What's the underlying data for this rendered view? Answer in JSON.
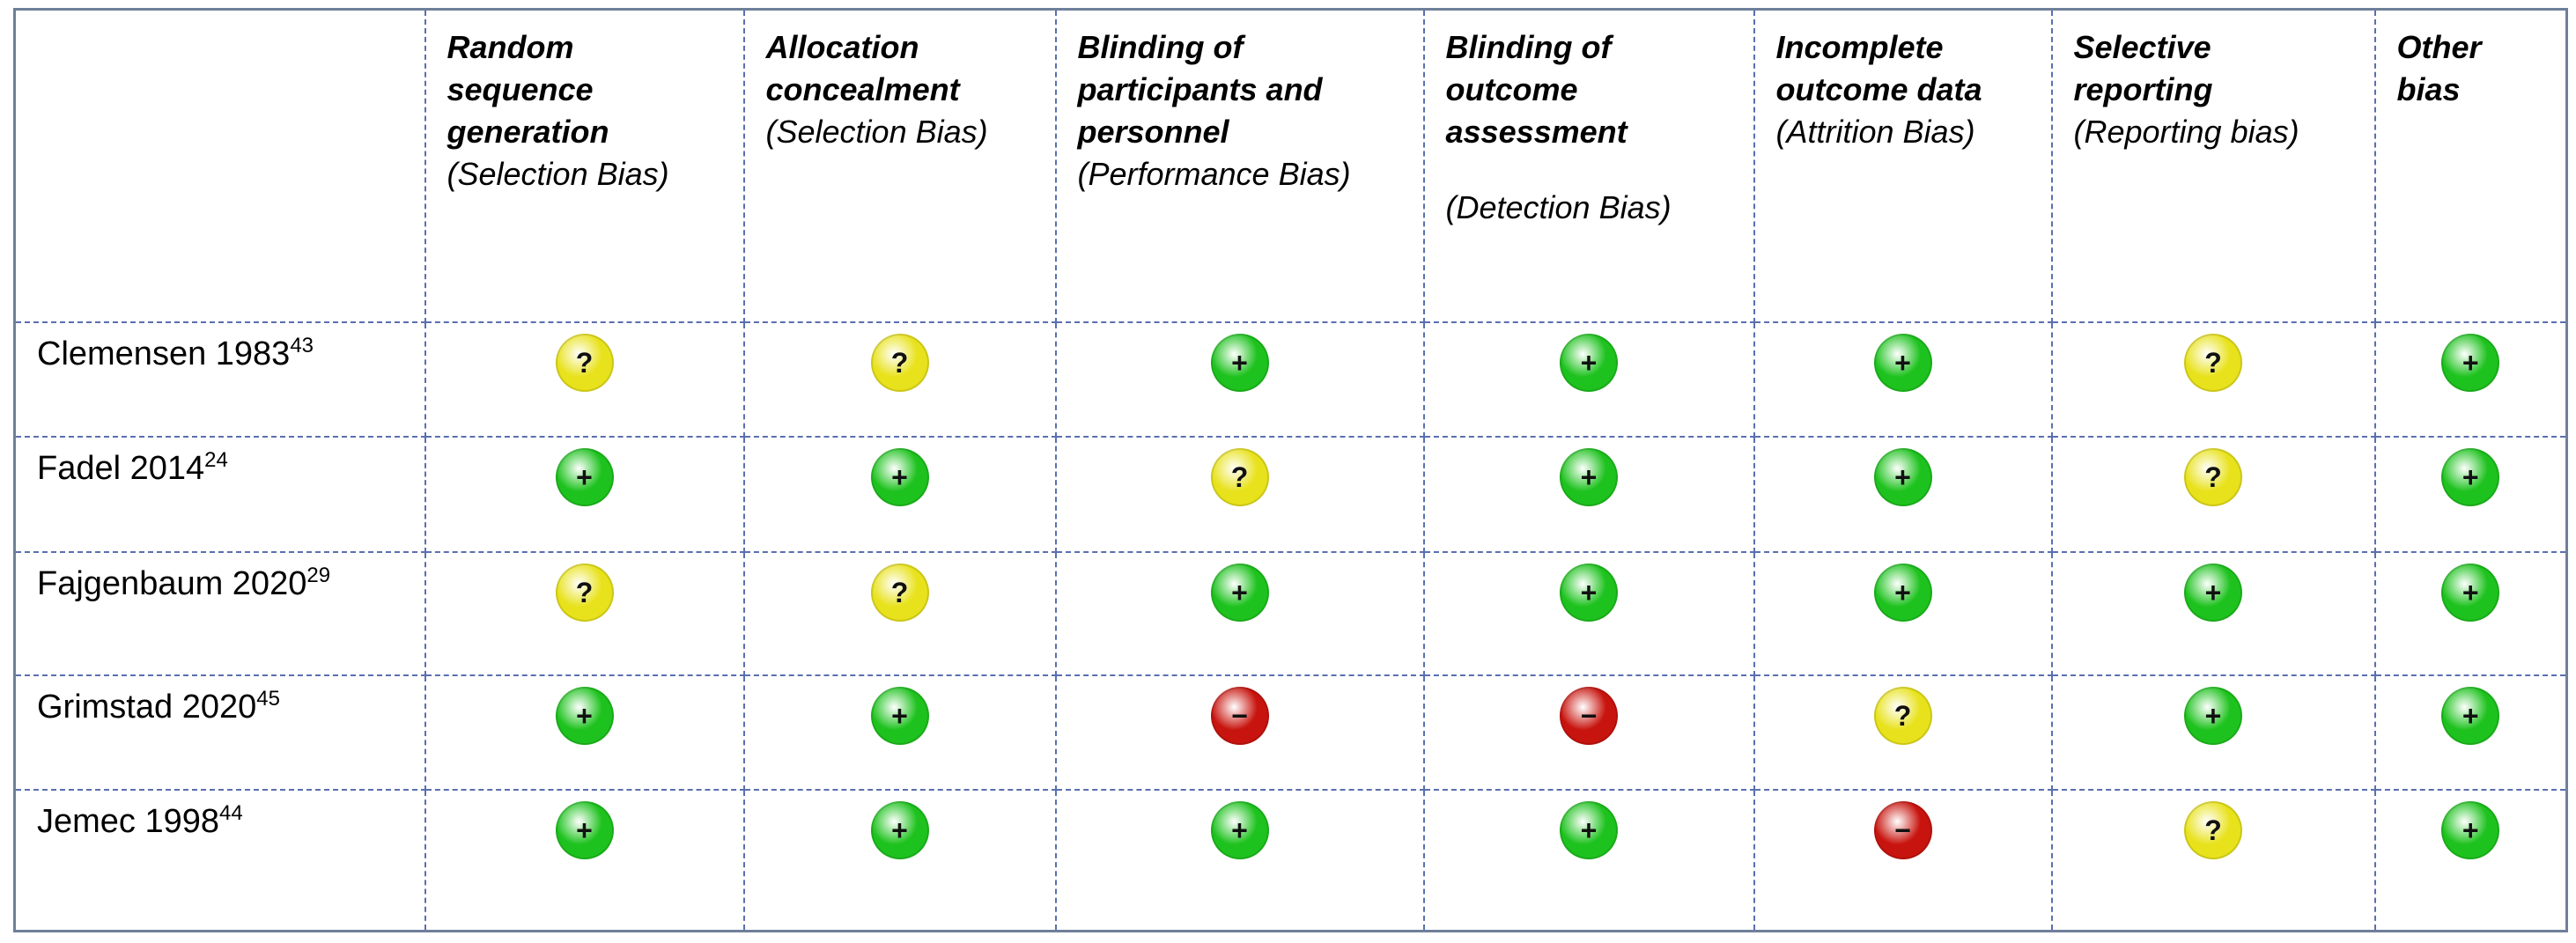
{
  "table": {
    "columns": [
      {
        "title": "Random sequence generation",
        "subtitle": "(Selection Bias)"
      },
      {
        "title": "Allocation concealment",
        "subtitle": "(Selection Bias)"
      },
      {
        "title": "Blinding of participants and personnel",
        "subtitle": "(Performance Bias)"
      },
      {
        "title": "Blinding of outcome assessment",
        "subtitle": "(Detection Bias)"
      },
      {
        "title": "Incomplete outcome data",
        "subtitle": "(Attrition Bias)"
      },
      {
        "title": "Selective reporting",
        "subtitle": "(Reporting bias)"
      },
      {
        "title": "Other bias"
      }
    ],
    "rows": [
      {
        "name": "Clemensen 1983",
        "ref": "43",
        "cells": [
          {
            "symbol": "?",
            "color": "#e8e21c"
          },
          {
            "symbol": "?",
            "color": "#e8e21c"
          },
          {
            "symbol": "+",
            "color": "#1ec21e"
          },
          {
            "symbol": "+",
            "color": "#1ec21e"
          },
          {
            "symbol": "+",
            "color": "#1ec21e"
          },
          {
            "symbol": "?",
            "color": "#e8e21c"
          },
          {
            "symbol": "+",
            "color": "#1ec21e"
          }
        ]
      },
      {
        "name": "Fadel 2014",
        "ref": "24",
        "cells": [
          {
            "symbol": "+",
            "color": "#1ec21e"
          },
          {
            "symbol": "+",
            "color": "#1ec21e"
          },
          {
            "symbol": "?",
            "color": "#e8e21c"
          },
          {
            "symbol": "+",
            "color": "#1ec21e"
          },
          {
            "symbol": "+",
            "color": "#1ec21e"
          },
          {
            "symbol": "?",
            "color": "#e8e21c"
          },
          {
            "symbol": "+",
            "color": "#1ec21e"
          }
        ]
      },
      {
        "name": "Fajgenbaum 2020",
        "ref": "29",
        "cells": [
          {
            "symbol": "?",
            "color": "#e8e21c"
          },
          {
            "symbol": "?",
            "color": "#e8e21c"
          },
          {
            "symbol": "+",
            "color": "#1ec21e"
          },
          {
            "symbol": "+",
            "color": "#1ec21e"
          },
          {
            "symbol": "+",
            "color": "#1ec21e"
          },
          {
            "symbol": "+",
            "color": "#1ec21e"
          },
          {
            "symbol": "+",
            "color": "#1ec21e"
          }
        ]
      },
      {
        "name": "Grimstad 2020",
        "ref": "45",
        "cells": [
          {
            "symbol": "+",
            "color": "#1ec21e"
          },
          {
            "symbol": "+",
            "color": "#1ec21e"
          },
          {
            "symbol": "−",
            "color": "#c8140e"
          },
          {
            "symbol": "−",
            "color": "#c8140e"
          },
          {
            "symbol": "?",
            "color": "#e8e21c"
          },
          {
            "symbol": "+",
            "color": "#1ec21e"
          },
          {
            "symbol": "+",
            "color": "#1ec21e"
          }
        ]
      },
      {
        "name": "Jemec 1998",
        "ref": "44",
        "cells": [
          {
            "symbol": "+",
            "color": "#1ec21e"
          },
          {
            "symbol": "+",
            "color": "#1ec21e"
          },
          {
            "symbol": "+",
            "color": "#1ec21e"
          },
          {
            "symbol": "+",
            "color": "#1ec21e"
          },
          {
            "symbol": "−",
            "color": "#c8140e"
          },
          {
            "symbol": "?",
            "color": "#e8e21c"
          },
          {
            "symbol": "+",
            "color": "#1ec21e"
          }
        ]
      }
    ]
  }
}
